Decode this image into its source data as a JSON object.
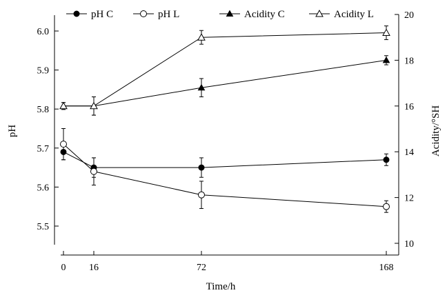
{
  "chart_data": {
    "type": "line",
    "x": [
      0,
      16,
      72,
      168
    ],
    "xlabel": "Time/h",
    "ylabel_left": "pH",
    "ylabel_right": "Acidity/°SH",
    "ylim_left": [
      5.4,
      6.1
    ],
    "ylim_right": [
      10,
      20
    ],
    "left_ticks": [
      "5.5",
      "5.6",
      "5.7",
      "5.8",
      "5.9",
      "6.0"
    ],
    "right_ticks": [
      "10",
      "12",
      "14",
      "16",
      "18",
      "20"
    ],
    "x_ticks": [
      "0",
      "16",
      "72",
      "168"
    ],
    "legend_position": "top",
    "grid": false,
    "series": [
      {
        "name": "pH C",
        "axis": "left",
        "marker": "filled-circle",
        "values": [
          5.69,
          5.65,
          5.65,
          5.67
        ],
        "errors": [
          0.02,
          0.025,
          0.025,
          0.015
        ]
      },
      {
        "name": "pH L",
        "axis": "left",
        "marker": "open-circle",
        "values": [
          5.71,
          5.64,
          5.58,
          5.55
        ],
        "errors": [
          0.04,
          0.035,
          0.035,
          0.015
        ]
      },
      {
        "name": "Acidity C",
        "axis": "right",
        "marker": "filled-triangle",
        "values": [
          16.0,
          16.0,
          16.8,
          18.0
        ],
        "errors": [
          0.15,
          0.4,
          0.4,
          0.2
        ]
      },
      {
        "name": "Acidity L",
        "axis": "right",
        "marker": "open-triangle",
        "values": [
          16.0,
          16.0,
          19.0,
          19.2
        ],
        "errors": [
          0.15,
          0.4,
          0.3,
          0.3
        ]
      }
    ]
  }
}
